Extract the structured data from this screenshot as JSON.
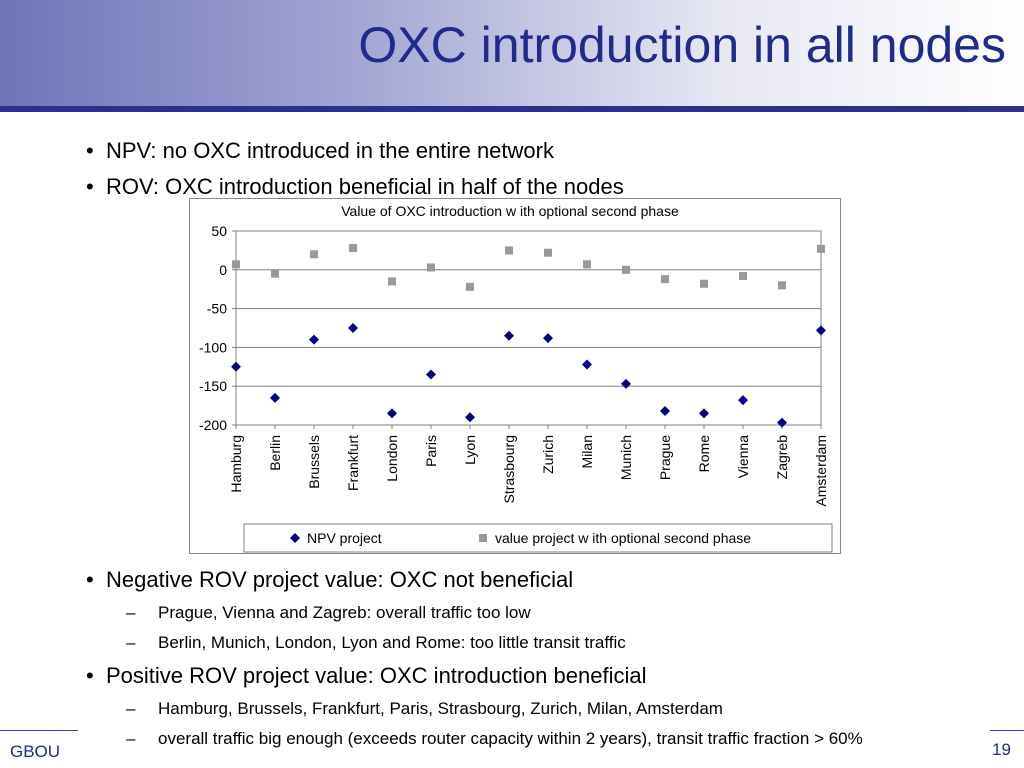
{
  "slide": {
    "title": "OXC introduction in all nodes",
    "bullets_top": [
      "NPV: no OXC introduced in the entire network",
      "ROV: OXC introduction beneficial in half of the nodes"
    ],
    "bullet_negative": "Negative ROV project value: OXC not beneficial",
    "sub_negative": [
      "Prague, Vienna and Zagreb: overall traffic too low",
      "Berlin, Munich, London, Lyon and Rome: too little transit traffic"
    ],
    "bullet_positive": "Positive ROV project value: OXC introduction beneficial",
    "sub_positive": [
      "Hamburg, Brussels, Frankfurt, Paris, Strasbourg, Zurich, Milan, Amsterdam",
      "overall traffic big enough (exceeds router capacity within 2 years), transit traffic fraction > 60%"
    ],
    "bullet_symbol": "•",
    "dash_symbol": "–"
  },
  "footer": {
    "left": "GBOU",
    "right": "19"
  },
  "chart_data": {
    "type": "scatter",
    "title": "Value of OXC introduction w ith optional second phase",
    "categories": [
      "Hamburg",
      "Berlin",
      "Brussels",
      "Frankfurt",
      "London",
      "Paris",
      "Lyon",
      "Strasbourg",
      "Zurich",
      "Milan",
      "Munich",
      "Prague",
      "Rome",
      "Vienna",
      "Zagreb",
      "Amsterdam"
    ],
    "series": [
      {
        "name": "NPV project",
        "marker": "diamond",
        "color": "#000080",
        "values": [
          -125,
          -165,
          -90,
          -75,
          -185,
          -135,
          -190,
          -85,
          -88,
          -122,
          -147,
          -182,
          -185,
          -168,
          -197,
          -78
        ]
      },
      {
        "name": "value project w ith optional second phase",
        "marker": "square",
        "color": "#999999",
        "values": [
          7,
          -5,
          20,
          28,
          -15,
          3,
          -22,
          25,
          22,
          7,
          0,
          -12,
          -18,
          -8,
          -20,
          27
        ]
      }
    ],
    "ylim": [
      -200,
      50
    ],
    "yticks": [
      50,
      0,
      -50,
      -100,
      -150,
      -200
    ],
    "xlabel": "",
    "ylabel": "",
    "grid": true,
    "legend": "bottom"
  }
}
